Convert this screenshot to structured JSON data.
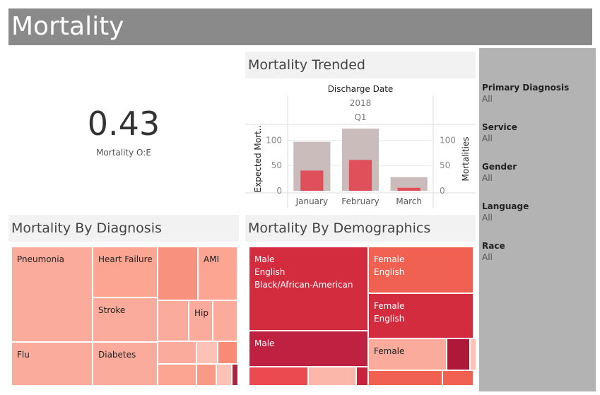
{
  "header": {
    "title": "Mortality"
  },
  "kpi": {
    "value": "0.43",
    "label": "Mortality O:E"
  },
  "trend": {
    "title": "Mortality Trended",
    "dimension": "Discharge Date",
    "year": "2018",
    "quarter": "Q1",
    "left_axis_label": "Expected Mort..",
    "right_axis_label": "Mortalities"
  },
  "chart_data": {
    "type": "bar",
    "categories": [
      "January",
      "February",
      "March"
    ],
    "series": [
      {
        "name": "Expected Mort..",
        "values": [
          97,
          123,
          27
        ],
        "color": "#c9bcba"
      },
      {
        "name": "Mortalities",
        "values": [
          40,
          61,
          6
        ],
        "color": "#e0505a"
      }
    ],
    "ylim": [
      0,
      130
    ],
    "yticks": [
      0,
      50,
      100
    ],
    "grid": true
  },
  "diagnosis": {
    "title": "Mortality By Diagnosis",
    "labels": [
      "Pneumonia",
      "Heart Failure",
      "AMI",
      "Stroke",
      "Hip",
      "Flu",
      "Diabetes"
    ]
  },
  "demographics": {
    "title": "Mortality By Demographics",
    "tiles": [
      {
        "lines": [
          "Male",
          "English",
          "Black/African-American"
        ]
      },
      {
        "lines": [
          "Female",
          "English"
        ]
      },
      {
        "lines": [
          "Female",
          "English"
        ]
      },
      {
        "lines": [
          "Male"
        ]
      },
      {
        "lines": [
          "Female"
        ]
      }
    ]
  },
  "filters": [
    {
      "title": "Primary Diagnosis",
      "value": "All"
    },
    {
      "title": "Service",
      "value": "All"
    },
    {
      "title": "Gender",
      "value": "All"
    },
    {
      "title": "Language",
      "value": "All"
    },
    {
      "title": "Race",
      "value": "All"
    }
  ]
}
